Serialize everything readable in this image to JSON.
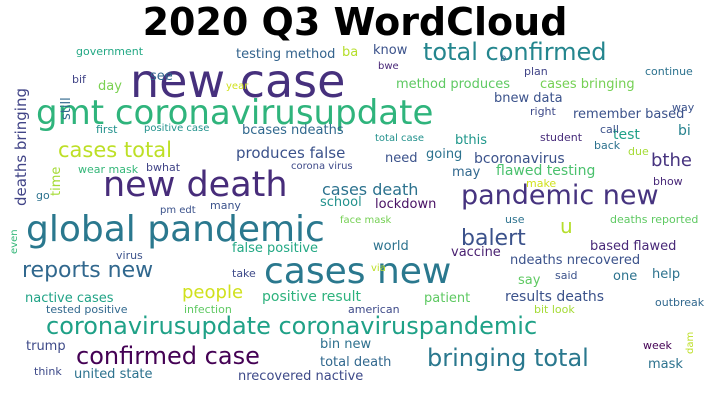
{
  "title": "2020 Q3 WordCloud",
  "words": [
    {
      "text": "new case",
      "color": "#46307d"
    },
    {
      "text": "gmt coronavirusupdate",
      "color": "#2fb47c"
    },
    {
      "text": "new death",
      "color": "#472c7a"
    },
    {
      "text": "global pandemic",
      "color": "#2a788e"
    },
    {
      "text": "cases new",
      "color": "#2a788e"
    },
    {
      "text": "pandemic new",
      "color": "#46337f"
    },
    {
      "text": "coronavirusupdate coronaviruspandemic",
      "color": "#1fa187"
    },
    {
      "text": "total confirmed",
      "color": "#24868e"
    },
    {
      "text": "confirmed case",
      "color": "#440154"
    },
    {
      "text": "bringing total",
      "color": "#2a788e"
    },
    {
      "text": "reports new",
      "color": "#31688e"
    },
    {
      "text": "cases total",
      "color": "#bddf26"
    },
    {
      "text": "balert",
      "color": "#3b528b"
    },
    {
      "text": "bthe",
      "color": "#46337f"
    },
    {
      "text": "people",
      "color": "#d0e11c"
    },
    {
      "text": "cases death",
      "color": "#2c728e"
    },
    {
      "text": "u",
      "color": "#b5de2b"
    },
    {
      "text": "produces false",
      "color": "#3b528b"
    },
    {
      "text": "deaths bringing",
      "color": "#414487"
    },
    {
      "text": "flawed testing",
      "color": "#4ac16d"
    },
    {
      "text": "bcoronavirus",
      "color": "#3b528b"
    },
    {
      "text": "positive result",
      "color": "#2db27d"
    },
    {
      "text": "results deaths",
      "color": "#3b528b"
    },
    {
      "text": "nactive cases",
      "color": "#20a386"
    },
    {
      "text": "false positive",
      "color": "#22a884"
    },
    {
      "text": "vaccine",
      "color": "#481f70"
    },
    {
      "text": "bin new",
      "color": "#2d708e"
    },
    {
      "text": "total death",
      "color": "#31688e"
    },
    {
      "text": "nrecovered nactive",
      "color": "#3e4a89"
    },
    {
      "text": "united state",
      "color": "#2c728e"
    },
    {
      "text": "testing method",
      "color": "#33638d"
    },
    {
      "text": "method produces",
      "color": "#5ec962"
    },
    {
      "text": "cases bringing",
      "color": "#75d054"
    },
    {
      "text": "bnew data",
      "color": "#3b528b"
    },
    {
      "text": "remember based",
      "color": "#3b528b"
    },
    {
      "text": "bcases ndeaths",
      "color": "#31688e"
    },
    {
      "text": "bthis",
      "color": "#1f978b"
    },
    {
      "text": "test",
      "color": "#1fa187"
    },
    {
      "text": "bi",
      "color": "#26828e"
    },
    {
      "text": "going",
      "color": "#2c728e"
    },
    {
      "text": "need",
      "color": "#3b528b"
    },
    {
      "text": "may",
      "color": "#31688e"
    },
    {
      "text": "school",
      "color": "#21918c"
    },
    {
      "text": "lockdown",
      "color": "#471063"
    },
    {
      "text": "world",
      "color": "#2c728e"
    },
    {
      "text": "based flawed",
      "color": "#482878"
    },
    {
      "text": "ndeaths nrecovered",
      "color": "#3b528b"
    },
    {
      "text": "say",
      "color": "#5ec962"
    },
    {
      "text": "one",
      "color": "#2c728e"
    },
    {
      "text": "help",
      "color": "#2c728e"
    },
    {
      "text": "patient",
      "color": "#5ec962"
    },
    {
      "text": "trump",
      "color": "#3e4a89"
    },
    {
      "text": "mask",
      "color": "#2c728e"
    },
    {
      "text": "know",
      "color": "#3b528b"
    },
    {
      "text": "see",
      "color": "#31688e"
    },
    {
      "text": "ba",
      "color": "#b5de2b"
    },
    {
      "text": "day",
      "color": "#7ad151"
    },
    {
      "text": "still",
      "color": "#31688e"
    },
    {
      "text": "time",
      "color": "#a5db36"
    },
    {
      "text": "government",
      "color": "#22a884"
    },
    {
      "text": "bif",
      "color": "#414487"
    },
    {
      "text": "first",
      "color": "#21918c"
    },
    {
      "text": "positive case",
      "color": "#21918c"
    },
    {
      "text": "year",
      "color": "#d0e11c"
    },
    {
      "text": "bwe",
      "color": "#482878"
    },
    {
      "text": "plan",
      "color": "#414487"
    },
    {
      "text": "b",
      "color": "#31688e"
    },
    {
      "text": "continue",
      "color": "#2c728e"
    },
    {
      "text": "way",
      "color": "#3b528b"
    },
    {
      "text": "right",
      "color": "#3e4a89"
    },
    {
      "text": "student",
      "color": "#472c7a"
    },
    {
      "text": "call",
      "color": "#3b528b"
    },
    {
      "text": "back",
      "color": "#2c728e"
    },
    {
      "text": "due",
      "color": "#a5db36"
    },
    {
      "text": "total case",
      "color": "#21918c"
    },
    {
      "text": "corona virus",
      "color": "#3e4a89"
    },
    {
      "text": "bwhat",
      "color": "#414487"
    },
    {
      "text": "wear mask",
      "color": "#35b779"
    },
    {
      "text": "make",
      "color": "#d0e11c"
    },
    {
      "text": "bhow",
      "color": "#482878"
    },
    {
      "text": "go",
      "color": "#2c728e"
    },
    {
      "text": "pm edt",
      "color": "#3b528b"
    },
    {
      "text": "many",
      "color": "#3b528b"
    },
    {
      "text": "face mask",
      "color": "#75d054"
    },
    {
      "text": "use",
      "color": "#2c728e"
    },
    {
      "text": "deaths reported",
      "color": "#5ec962"
    },
    {
      "text": "even",
      "color": "#35b779"
    },
    {
      "text": "virus",
      "color": "#3b528b"
    },
    {
      "text": "take",
      "color": "#3e4a89"
    },
    {
      "text": "via",
      "color": "#bddf26"
    },
    {
      "text": "said",
      "color": "#3b528b"
    },
    {
      "text": "outbreak",
      "color": "#31688e"
    },
    {
      "text": "tested positive",
      "color": "#31688e"
    },
    {
      "text": "infection",
      "color": "#5ec962"
    },
    {
      "text": "american",
      "color": "#3e4a89"
    },
    {
      "text": "bit look",
      "color": "#a5db36"
    },
    {
      "text": "week",
      "color": "#440154"
    },
    {
      "text": "dam",
      "color": "#bddf26"
    },
    {
      "text": "think",
      "color": "#3e4a89"
    }
  ]
}
